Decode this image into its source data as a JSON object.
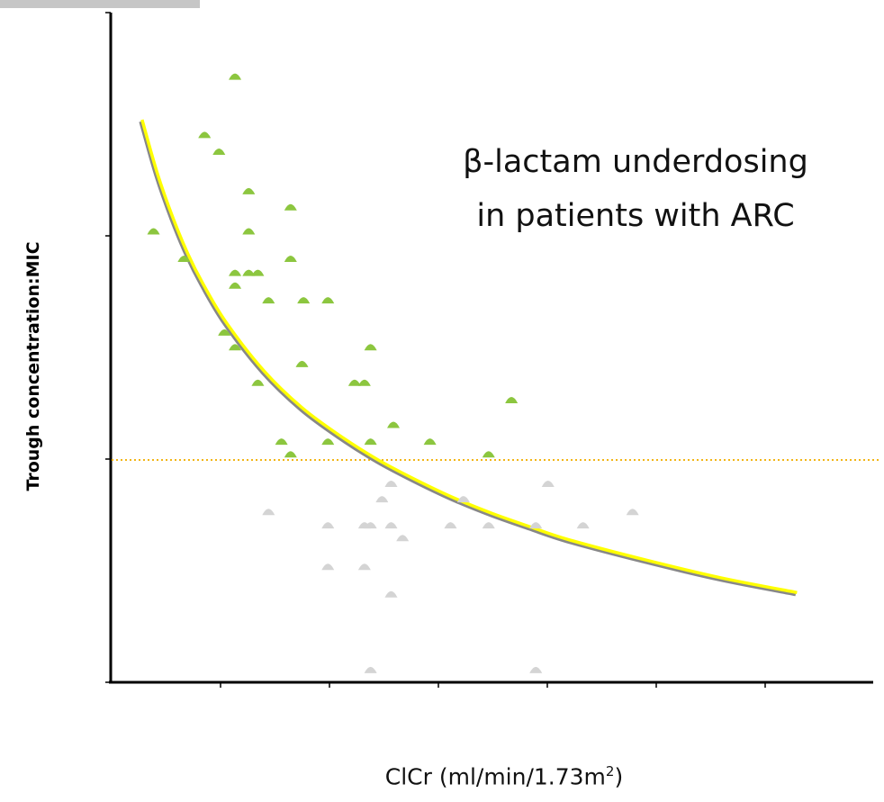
{
  "chart_data": {
    "type": "scatter",
    "title": "",
    "xlabel": "ClCr (ml/min/1.73m²)",
    "xlabel_parts": {
      "main": "ClCr (ml/min/1.73m",
      "sup": "2",
      "tail": ")"
    },
    "ylabel": "Trough concentration:MIC",
    "annotation_lines": [
      "β-lactam underdosing",
      "in patients with  ARC"
    ],
    "xlim": [
      0,
      100
    ],
    "ylim": [
      0,
      100
    ],
    "grid": false,
    "threshold": {
      "y": 33.2,
      "style": "dotted",
      "color": "#f2b516"
    },
    "trend_curve": {
      "type": "exponential-decay",
      "color": "#ffff00",
      "shadow_color": "#888888",
      "x": [
        4,
        6,
        8,
        10,
        12,
        15,
        20,
        25,
        30,
        35,
        40,
        45,
        50,
        55,
        60,
        70,
        80,
        90
      ],
      "y": [
        84,
        76,
        69.5,
        64,
        59.5,
        53.8,
        46.5,
        41,
        36.8,
        33.2,
        30.2,
        27.5,
        25.2,
        23.2,
        21.3,
        18.3,
        15.6,
        13.4
      ]
    },
    "series": [
      {
        "color": "#8cc63f",
        "points": [
          {
            "x": 5.5,
            "y": 67.4
          },
          {
            "x": 9.5,
            "y": 63.3
          },
          {
            "x": 12.2,
            "y": 81.8
          },
          {
            "x": 14.1,
            "y": 79.3
          },
          {
            "x": 16.2,
            "y": 90.5
          },
          {
            "x": 18.0,
            "y": 73.4
          },
          {
            "x": 18.0,
            "y": 67.4
          },
          {
            "x": 14.8,
            "y": 52.3
          },
          {
            "x": 16.2,
            "y": 61.2
          },
          {
            "x": 16.2,
            "y": 59.3
          },
          {
            "x": 16.2,
            "y": 50.1
          },
          {
            "x": 18.0,
            "y": 61.2
          },
          {
            "x": 19.2,
            "y": 61.2
          },
          {
            "x": 20.6,
            "y": 57.1
          },
          {
            "x": 19.2,
            "y": 44.8
          },
          {
            "x": 23.5,
            "y": 71.0
          },
          {
            "x": 23.5,
            "y": 63.3
          },
          {
            "x": 25.2,
            "y": 57.1
          },
          {
            "x": 25.0,
            "y": 47.6
          },
          {
            "x": 28.4,
            "y": 57.1
          },
          {
            "x": 22.3,
            "y": 36.0
          },
          {
            "x": 23.5,
            "y": 34.1
          },
          {
            "x": 28.4,
            "y": 36.0
          },
          {
            "x": 31.9,
            "y": 44.8
          },
          {
            "x": 33.2,
            "y": 44.8
          },
          {
            "x": 34.0,
            "y": 50.1
          },
          {
            "x": 34.0,
            "y": 36.0
          },
          {
            "x": 37.0,
            "y": 38.5
          },
          {
            "x": 41.8,
            "y": 36.0
          },
          {
            "x": 49.5,
            "y": 34.1
          },
          {
            "x": 52.5,
            "y": 42.2
          }
        ]
      },
      {
        "color": "#d4d4d4",
        "points": [
          {
            "x": 20.6,
            "y": 25.5
          },
          {
            "x": 28.4,
            "y": 23.5
          },
          {
            "x": 33.2,
            "y": 23.5
          },
          {
            "x": 34.0,
            "y": 23.5
          },
          {
            "x": 35.5,
            "y": 27.4
          },
          {
            "x": 36.7,
            "y": 29.7
          },
          {
            "x": 36.7,
            "y": 23.5
          },
          {
            "x": 38.2,
            "y": 21.6
          },
          {
            "x": 44.5,
            "y": 23.5
          },
          {
            "x": 46.2,
            "y": 27.4
          },
          {
            "x": 49.5,
            "y": 23.5
          },
          {
            "x": 55.7,
            "y": 23.5
          },
          {
            "x": 57.3,
            "y": 29.7
          },
          {
            "x": 61.9,
            "y": 23.5
          },
          {
            "x": 68.4,
            "y": 25.5
          },
          {
            "x": 28.4,
            "y": 17.3
          },
          {
            "x": 33.2,
            "y": 17.3
          },
          {
            "x": 36.7,
            "y": 13.2
          },
          {
            "x": 34.0,
            "y": 1.9
          },
          {
            "x": 55.7,
            "y": 1.9
          }
        ]
      }
    ]
  }
}
